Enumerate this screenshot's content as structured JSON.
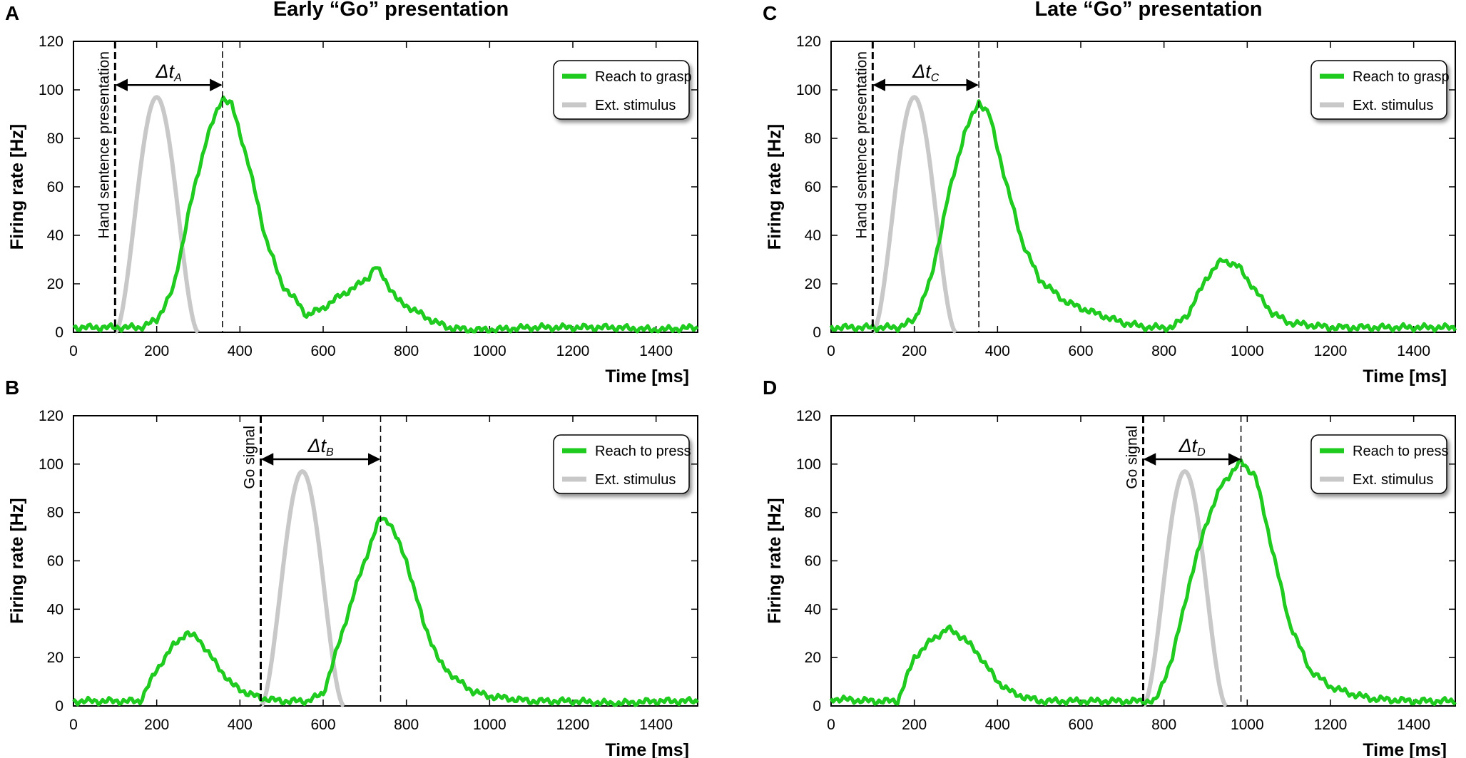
{
  "colors": {
    "response": "#1ecb1e",
    "stimulus": "#c8c8c8",
    "axis": "#000000"
  },
  "column_titles": [
    "Early “Go” presentation",
    "Late “Go” presentation"
  ],
  "chart_data": [
    {
      "panel": "A",
      "type": "line",
      "xlabel": "Time  [ms]",
      "ylabel": "Firing  rate  [Hz]",
      "xlim": [
        0,
        1500
      ],
      "ylim": [
        0,
        120
      ],
      "xticks": [
        0,
        200,
        400,
        600,
        800,
        1000,
        1200,
        1400
      ],
      "yticks": [
        0,
        20,
        40,
        60,
        80,
        100,
        120
      ],
      "event": {
        "label": "Hand  sentence  presentation",
        "time": 100
      },
      "peak_time": 358,
      "delta": {
        "symbol": "Δt",
        "sub": "A",
        "from": 100,
        "to": 358
      },
      "legend": {
        "position": "top-right",
        "entries": [
          "Reach to grasp",
          "Ext.  stimulus"
        ]
      },
      "series": [
        {
          "name": "Reach to grasp",
          "role": "response",
          "x": [
            0,
            100,
            160,
            200,
            240,
            280,
            320,
            358,
            380,
            420,
            460,
            500,
            540,
            560,
            600,
            640,
            680,
            710,
            725,
            740,
            780,
            820,
            860,
            900,
            950,
            1000,
            1100,
            1200,
            1300,
            1400,
            1500
          ],
          "y": [
            2,
            2,
            2,
            5,
            18,
            52,
            80,
            97,
            94,
            70,
            40,
            20,
            12,
            7,
            10,
            15,
            19,
            23,
            27,
            24,
            13,
            9,
            5,
            2,
            1,
            1,
            2,
            2,
            2,
            1,
            2
          ]
        },
        {
          "name": "Ext.  stimulus",
          "role": "stimulus",
          "peak_x": 200,
          "width": 100,
          "amplitude": 97
        }
      ]
    },
    {
      "panel": "B",
      "type": "line",
      "xlabel": "Time  [ms]",
      "ylabel": "Firing  rate  [Hz]",
      "xlim": [
        0,
        1500
      ],
      "ylim": [
        0,
        120
      ],
      "xticks": [
        0,
        200,
        400,
        600,
        800,
        1000,
        1200,
        1400
      ],
      "yticks": [
        0,
        20,
        40,
        60,
        80,
        100,
        120
      ],
      "event": {
        "label": "Go  signal",
        "time": 450
      },
      "peak_time": 738,
      "delta": {
        "symbol": "Δt",
        "sub": "B",
        "from": 450,
        "to": 738
      },
      "legend": {
        "position": "top-right",
        "entries": [
          "Reach to press",
          "Ext.  stimulus"
        ]
      },
      "series": [
        {
          "name": "Reach to press",
          "role": "response",
          "x": [
            0,
            100,
            160,
            200,
            240,
            270,
            300,
            340,
            380,
            420,
            460,
            500,
            560,
            600,
            640,
            680,
            720,
            738,
            760,
            800,
            840,
            880,
            920,
            960,
            1000,
            1100,
            1200,
            1300,
            1400,
            1500
          ],
          "y": [
            2,
            2,
            2,
            15,
            25,
            30,
            28,
            18,
            9,
            5,
            3,
            2,
            2,
            5,
            27,
            50,
            70,
            78,
            76,
            60,
            35,
            18,
            11,
            6,
            4,
            2,
            2,
            1,
            2,
            2
          ]
        },
        {
          "name": "Ext.  stimulus",
          "role": "stimulus",
          "peak_x": 550,
          "width": 100,
          "amplitude": 97
        }
      ]
    },
    {
      "panel": "C",
      "type": "line",
      "xlabel": "Time  [ms]",
      "ylabel": "Firing  rate  [Hz]",
      "xlim": [
        0,
        1500
      ],
      "ylim": [
        0,
        120
      ],
      "xticks": [
        0,
        200,
        400,
        600,
        800,
        1000,
        1200,
        1400
      ],
      "yticks": [
        0,
        20,
        40,
        60,
        80,
        100,
        120
      ],
      "event": {
        "label": "Hand  sentence  presentation",
        "time": 100
      },
      "peak_time": 355,
      "delta": {
        "symbol": "Δt",
        "sub": "C",
        "from": 100,
        "to": 355
      },
      "legend": {
        "position": "top-right",
        "entries": [
          "Reach to grasp",
          "Ext.  stimulus"
        ]
      },
      "series": [
        {
          "name": "Reach to grasp",
          "role": "response",
          "x": [
            0,
            100,
            160,
            200,
            240,
            280,
            320,
            355,
            380,
            420,
            460,
            500,
            560,
            600,
            650,
            700,
            760,
            820,
            860,
            900,
            940,
            980,
            1020,
            1060,
            1100,
            1200,
            1300,
            1400,
            1500
          ],
          "y": [
            2,
            2,
            2,
            5,
            22,
            55,
            82,
            95,
            90,
            62,
            37,
            22,
            13,
            10,
            7,
            4,
            2,
            2,
            8,
            22,
            30,
            27,
            17,
            8,
            4,
            2,
            2,
            2,
            2
          ]
        },
        {
          "name": "Ext.  stimulus",
          "role": "stimulus",
          "peak_x": 200,
          "width": 100,
          "amplitude": 97
        }
      ]
    },
    {
      "panel": "D",
      "type": "line",
      "xlabel": "Time  [ms]",
      "ylabel": "Firing  rate  [Hz]",
      "xlim": [
        0,
        1500
      ],
      "ylim": [
        0,
        120
      ],
      "xticks": [
        0,
        200,
        400,
        600,
        800,
        1000,
        1200,
        1400
      ],
      "yticks": [
        0,
        20,
        40,
        60,
        80,
        100,
        120
      ],
      "event": {
        "label": "Go  signal",
        "time": 750
      },
      "peak_time": 985,
      "delta": {
        "symbol": "Δt",
        "sub": "D",
        "from": 750,
        "to": 985
      },
      "legend": {
        "position": "top-right",
        "entries": [
          "Reach to press",
          "Ext.  stimulus"
        ]
      },
      "series": [
        {
          "name": "Reach to press",
          "role": "response",
          "x": [
            0,
            100,
            160,
            200,
            240,
            280,
            320,
            360,
            400,
            440,
            500,
            560,
            600,
            700,
            780,
            820,
            860,
            900,
            940,
            985,
            1020,
            1060,
            1100,
            1150,
            1200,
            1250,
            1300,
            1400,
            1500
          ],
          "y": [
            3,
            2,
            2,
            20,
            27,
            32,
            28,
            20,
            10,
            5,
            2,
            2,
            2,
            2,
            2,
            20,
            50,
            75,
            92,
            101,
            95,
            65,
            35,
            15,
            8,
            5,
            3,
            2,
            2
          ]
        },
        {
          "name": "Ext.  stimulus",
          "role": "stimulus",
          "peak_x": 850,
          "width": 100,
          "amplitude": 97
        }
      ]
    }
  ]
}
